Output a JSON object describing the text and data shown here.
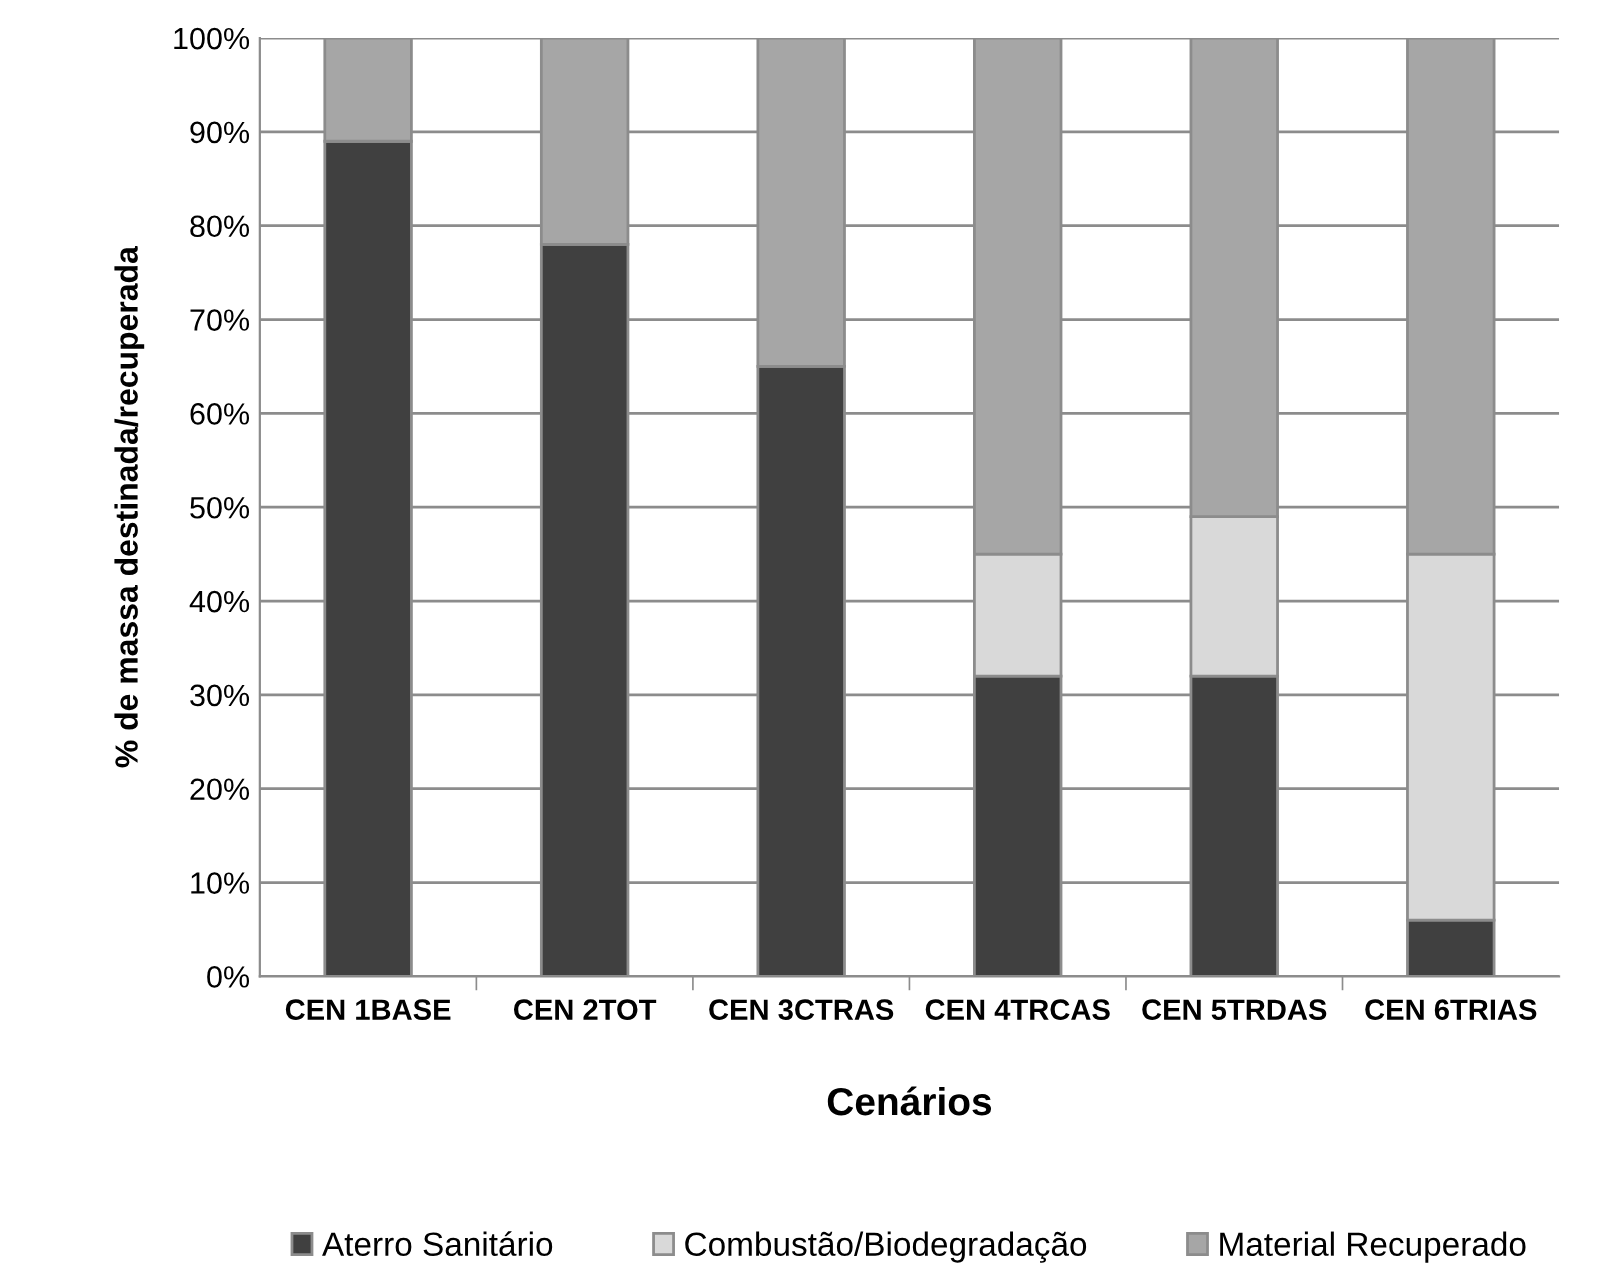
{
  "chart_data": {
    "type": "bar",
    "stacked": true,
    "xlabel": "Cenários",
    "ylabel": "% de massa destinada/recuperada",
    "categories": [
      "CEN 1BASE",
      "CEN 2TOT",
      "CEN 3CTRAS",
      "CEN 4TRCAS",
      "CEN 5TRDAS",
      "CEN 6TRIAS"
    ],
    "series": [
      {
        "name": "Aterro Sanitário",
        "color": "#404040",
        "values": [
          89,
          78,
          65,
          32,
          32,
          6
        ]
      },
      {
        "name": "Combustão/Biodegradação",
        "color": "#d9d9d9",
        "values": [
          0,
          0,
          0,
          13,
          17,
          39
        ]
      },
      {
        "name": "Material Recuperado",
        "color": "#a6a6a6",
        "values": [
          11,
          22,
          35,
          55,
          51,
          55
        ]
      }
    ],
    "ylim": [
      0,
      100
    ],
    "yticks": [
      {
        "value": 0,
        "label": "0%"
      },
      {
        "value": 10,
        "label": "10%"
      },
      {
        "value": 20,
        "label": "20%"
      },
      {
        "value": 30,
        "label": "30%"
      },
      {
        "value": 40,
        "label": "40%"
      },
      {
        "value": 50,
        "label": "50%"
      },
      {
        "value": 60,
        "label": "60%"
      },
      {
        "value": 70,
        "label": "70%"
      },
      {
        "value": 80,
        "label": "80%"
      },
      {
        "value": 90,
        "label": "90%"
      },
      {
        "value": 100,
        "label": "100%"
      }
    ],
    "grid": "y",
    "legend": "bottom"
  }
}
